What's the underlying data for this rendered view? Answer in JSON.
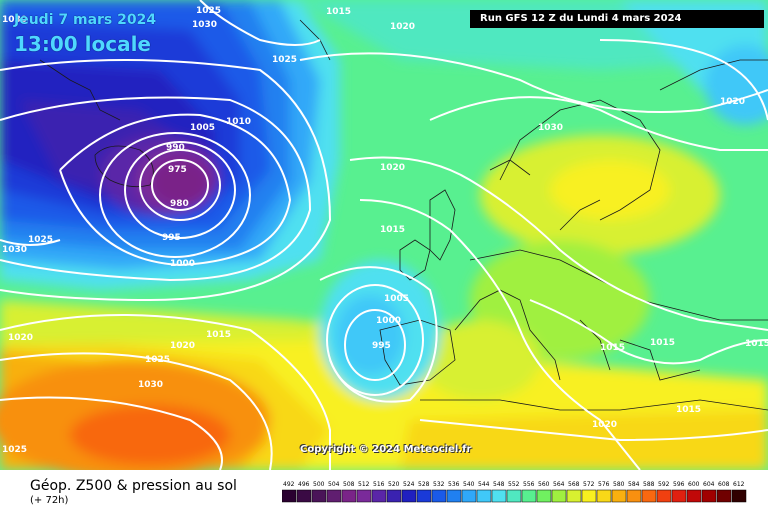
{
  "overlay": {
    "date": "Jeudi 7 mars 2024",
    "time": "13:00 locale",
    "run": "Run GFS 12 Z du Lundi 4 mars 2024",
    "copyright": "Copyright © 2024 Meteociel.fr"
  },
  "footer": {
    "title": "Géop. Z500 & pression au sol",
    "subtitle": "(+ 72h)"
  },
  "legend": {
    "labels": [
      "492",
      "496",
      "500",
      "504",
      "508",
      "512",
      "516",
      "520",
      "524",
      "528",
      "532",
      "536",
      "540",
      "544",
      "548",
      "552",
      "556",
      "560",
      "564",
      "568",
      "572",
      "576",
      "580",
      "584",
      "588",
      "592",
      "596",
      "600",
      "604",
      "608",
      "612"
    ],
    "colors": [
      "#2a0030",
      "#3a0a44",
      "#4a1458",
      "#601e70",
      "#7a2488",
      "#7a2a9a",
      "#5a26a8",
      "#3a22b0",
      "#2020c0",
      "#1a3ad8",
      "#1a5ae8",
      "#2080f0",
      "#30a8f8",
      "#40c8f8",
      "#50e0f0",
      "#50e8c0",
      "#58f090",
      "#70f060",
      "#a0f040",
      "#d8f030",
      "#f8f020",
      "#f8d818",
      "#f8b010",
      "#f89010",
      "#f86810",
      "#f04010",
      "#e02010",
      "#c00808",
      "#a00000",
      "#700000",
      "#300000"
    ]
  },
  "pressure_labels": [
    "1030",
    "1015",
    "1020",
    "1025",
    "1005",
    "1010",
    "990",
    "975",
    "980",
    "995",
    "1000",
    "1030",
    "1025",
    "1020",
    "1030",
    "1015",
    "1020",
    "1005",
    "1000",
    "995",
    "1015",
    "1015",
    "1020",
    "1015",
    "1025",
    "1030",
    "1020",
    "1025",
    "1020",
    "1015"
  ]
}
